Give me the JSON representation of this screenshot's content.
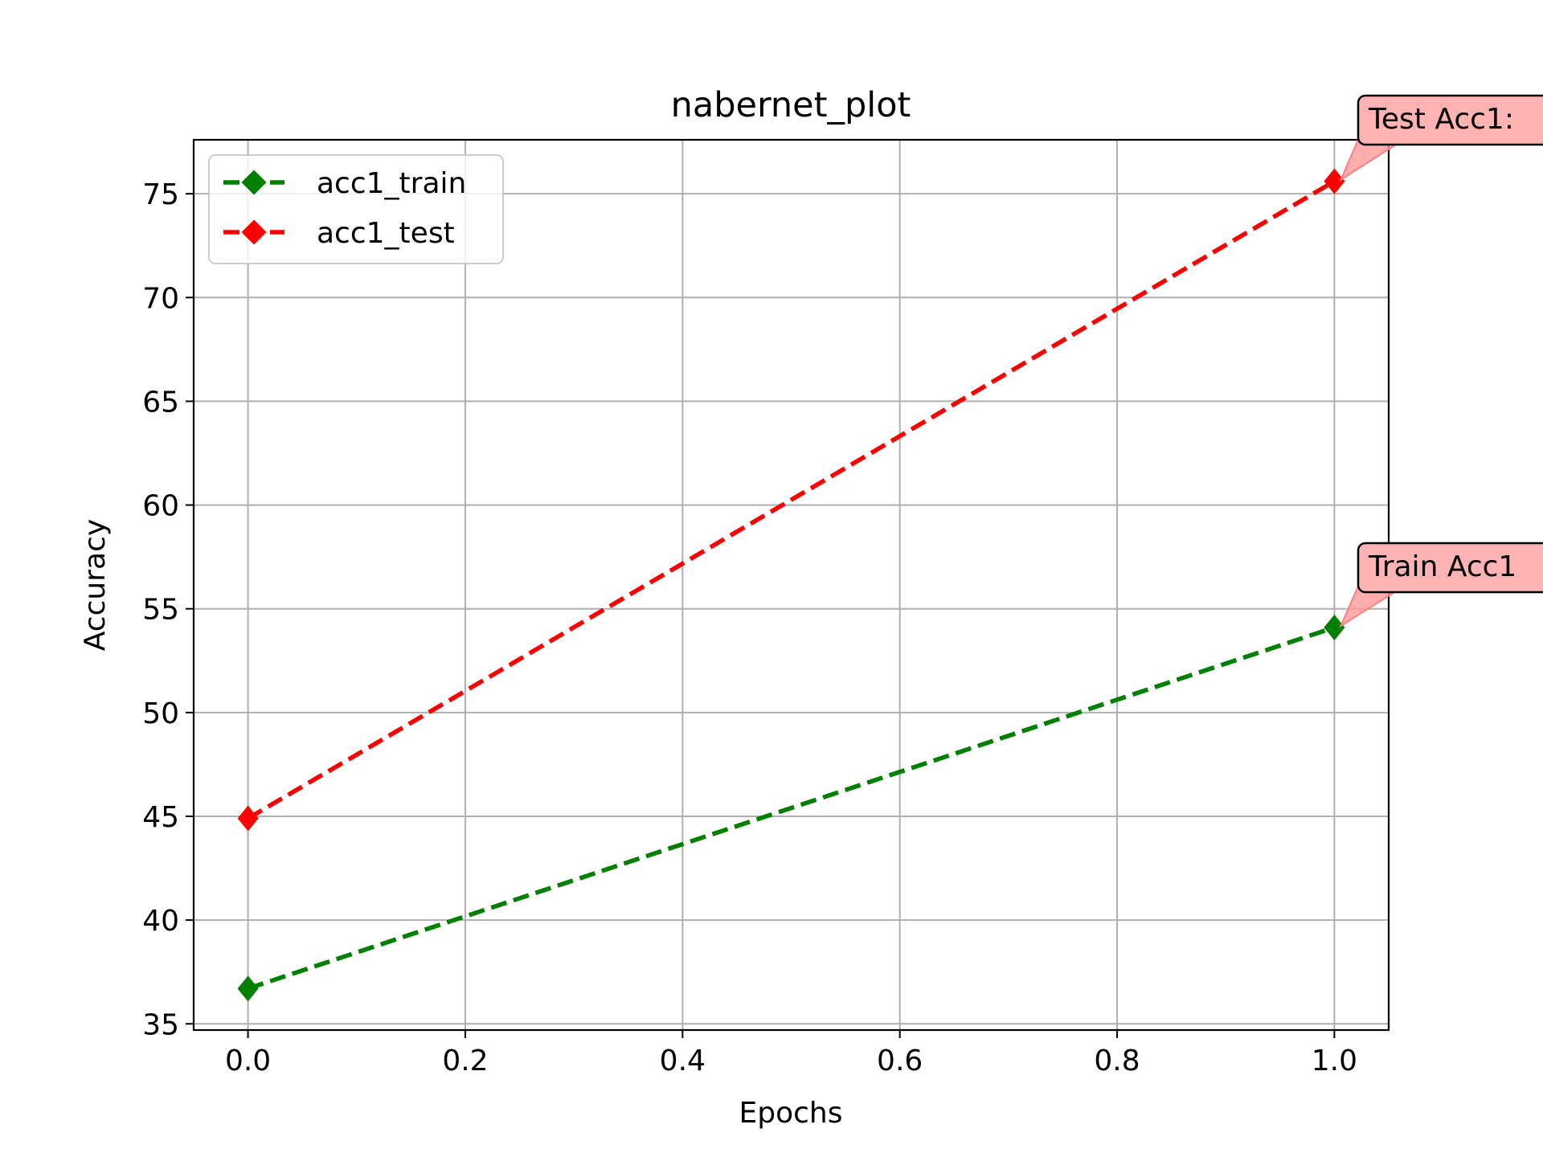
{
  "chart_data": {
    "type": "line",
    "title": "nabernet_plot",
    "xlabel": "Epochs",
    "ylabel": "Accuracy",
    "xlim": [
      -0.05,
      1.05
    ],
    "ylim": [
      34.7,
      77.6
    ],
    "xticks": [
      0.0,
      0.2,
      0.4,
      0.6,
      0.8,
      1.0
    ],
    "xtick_labels": [
      "0.0",
      "0.2",
      "0.4",
      "0.6",
      "0.8",
      "1.0"
    ],
    "yticks": [
      35,
      40,
      45,
      50,
      55,
      60,
      65,
      70,
      75
    ],
    "ytick_labels": [
      "35",
      "40",
      "45",
      "50",
      "55",
      "60",
      "65",
      "70",
      "75"
    ],
    "grid": true,
    "legend_position": "upper-left",
    "series": [
      {
        "name": "acc1_train",
        "color": "#008000",
        "marker": "diamond",
        "linestyle": "dashed",
        "x": [
          0,
          1
        ],
        "y": [
          36.7,
          54.1
        ]
      },
      {
        "name": "acc1_test",
        "color": "#ff0000",
        "marker": "diamond",
        "linestyle": "dashed",
        "x": [
          0,
          1
        ],
        "y": [
          44.9,
          75.6
        ]
      }
    ],
    "annotations": [
      {
        "text": "Test Acc1:",
        "x": 1,
        "y": 75.6,
        "box_color": "#ffb3b3"
      },
      {
        "text": "Train Acc1",
        "x": 1,
        "y": 54.1,
        "box_color": "#ffb3b3"
      }
    ]
  }
}
